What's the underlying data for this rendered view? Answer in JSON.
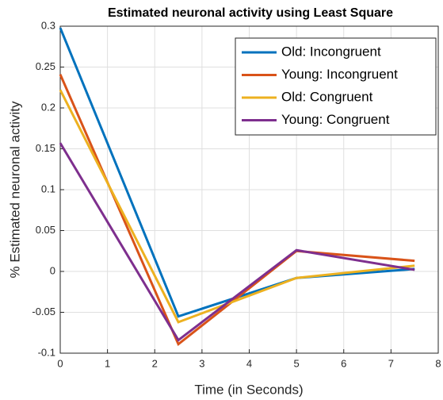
{
  "chart_data": {
    "type": "line",
    "title": "Estimated neuronal activity using Least Square",
    "x_label": "Time (in Seconds)",
    "y_label": "% Estimated neuronal activity",
    "x": [
      0,
      2.5,
      5,
      7.5
    ],
    "series": [
      {
        "name": "Old: Incongruent",
        "color": "#0072bd",
        "values": [
          0.298,
          -0.055,
          -0.008,
          0.003
        ]
      },
      {
        "name": "Young: Incongruent",
        "color": "#d95319",
        "values": [
          0.241,
          -0.089,
          0.025,
          0.013
        ]
      },
      {
        "name": "Old: Congruent",
        "color": "#edb120",
        "values": [
          0.222,
          -0.062,
          -0.008,
          0.007
        ]
      },
      {
        "name": "Young: Congruent",
        "color": "#7e2f8e",
        "values": [
          0.157,
          -0.084,
          0.026,
          0.002
        ]
      }
    ],
    "xlim": [
      0,
      8
    ],
    "xticks": [
      0,
      1,
      2,
      3,
      4,
      5,
      6,
      7,
      8
    ],
    "ylim": [
      -0.1,
      0.3
    ],
    "yticks": [
      -0.1,
      -0.05,
      0,
      0.05,
      0.1,
      0.15,
      0.2,
      0.25,
      0.3
    ],
    "grid": true,
    "legend": "top-right"
  }
}
